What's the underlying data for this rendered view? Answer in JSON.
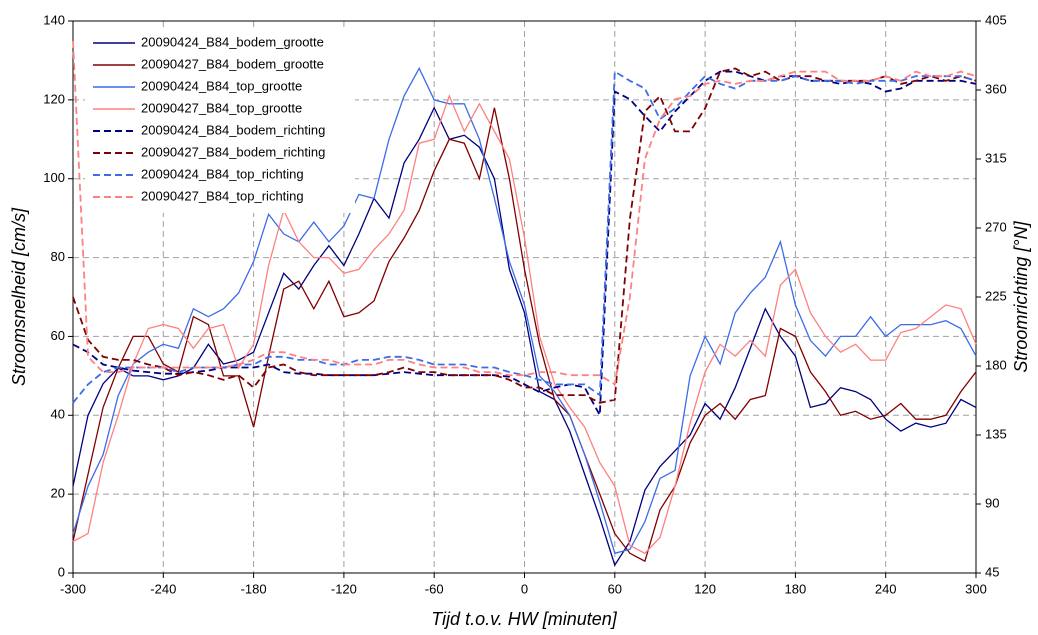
{
  "chart_data": {
    "type": "line",
    "xlabel": "Tijd t.o.v. HW [minuten]",
    "ylabel": "Stroomsnelheid [cm/s]",
    "y2label": "Stroomrichting [°N]",
    "xlim": [
      -300,
      300
    ],
    "xticks": [
      -300,
      -240,
      -180,
      -120,
      -60,
      0,
      60,
      120,
      180,
      240,
      300
    ],
    "ylim": [
      0,
      140
    ],
    "yticks": [
      0,
      20,
      40,
      60,
      80,
      100,
      120,
      140
    ],
    "y2lim": [
      45,
      405
    ],
    "y2ticks": [
      45,
      90,
      135,
      180,
      225,
      270,
      315,
      360,
      405
    ],
    "grid": true,
    "legend": "upper left",
    "x": [
      -300,
      -290,
      -280,
      -270,
      -260,
      -250,
      -240,
      -230,
      -220,
      -210,
      -200,
      -190,
      -180,
      -170,
      -160,
      -150,
      -140,
      -130,
      -120,
      -110,
      -100,
      -90,
      -80,
      -70,
      -60,
      -50,
      -40,
      -30,
      -20,
      -10,
      0,
      10,
      20,
      30,
      40,
      50,
      60,
      70,
      80,
      90,
      100,
      110,
      120,
      130,
      140,
      150,
      160,
      170,
      180,
      190,
      200,
      210,
      220,
      230,
      240,
      250,
      260,
      270,
      280,
      290,
      300
    ],
    "series": [
      {
        "name": "20090424_B84_bodem_grootte",
        "color": "#000080",
        "line_style": "solid",
        "values": [
          22,
          40,
          48,
          52,
          50,
          50,
          49,
          50,
          52,
          58,
          53,
          54,
          56,
          66,
          76,
          72,
          78,
          83,
          78,
          86,
          95,
          90,
          104,
          110,
          118,
          110,
          111,
          108,
          100,
          77,
          66,
          46,
          44,
          36,
          25,
          14,
          2,
          8,
          21,
          27,
          31,
          35,
          43,
          39,
          47,
          57,
          67,
          60,
          55,
          42,
          43,
          47,
          46,
          44,
          39,
          36,
          38,
          37,
          38,
          44,
          42
        ]
      },
      {
        "name": "20090427_B84_bodem_grootte",
        "color": "#800000",
        "line_style": "solid",
        "values": [
          8,
          25,
          42,
          52,
          60,
          60,
          53,
          51,
          65,
          63,
          50,
          50,
          37,
          55,
          72,
          74,
          67,
          74,
          65,
          66,
          69,
          79,
          85,
          92,
          102,
          110,
          109,
          100,
          118,
          100,
          77,
          58,
          44,
          40,
          30,
          20,
          10,
          5,
          3,
          16,
          22,
          33,
          40,
          43,
          39,
          44,
          45,
          62,
          60,
          51,
          46,
          40,
          41,
          39,
          40,
          43,
          39,
          39,
          40,
          46,
          51
        ]
      },
      {
        "name": "20090424_B84_top_grootte",
        "color": "#3c6ce8",
        "line_style": "solid",
        "values": [
          10,
          22,
          30,
          45,
          53,
          56,
          58,
          57,
          67,
          65,
          67,
          71,
          79,
          91,
          86,
          84,
          89,
          84,
          88,
          96,
          95,
          110,
          121,
          128,
          120,
          119,
          119,
          110,
          95,
          79,
          68,
          50,
          46,
          40,
          30,
          18,
          5,
          6,
          13,
          24,
          26,
          50,
          60,
          53,
          66,
          71,
          75,
          84,
          68,
          59,
          55,
          60,
          60,
          65,
          60,
          63,
          63,
          63,
          64,
          62,
          55
        ]
      },
      {
        "name": "20090427_B84_top_grootte",
        "color": "#ff8080",
        "line_style": "solid",
        "values": [
          8,
          10,
          28,
          40,
          53,
          62,
          63,
          62,
          57,
          62,
          63,
          52,
          58,
          78,
          92,
          84,
          80,
          80,
          76,
          77,
          82,
          86,
          92,
          109,
          110,
          121,
          112,
          119,
          112,
          105,
          85,
          60,
          48,
          42,
          37,
          28,
          22,
          7,
          5,
          9,
          22,
          38,
          51,
          58,
          55,
          59,
          55,
          73,
          77,
          66,
          60,
          56,
          58,
          54,
          54,
          61,
          62,
          65,
          68,
          67,
          58
        ]
      },
      {
        "name": "20090424_B84_bodem_richting",
        "color": "#000080",
        "line_style": "dashed",
        "axis": "y2",
        "values": [
          194,
          189,
          181,
          179,
          177,
          176,
          175,
          175,
          176,
          177,
          179,
          179,
          179,
          181,
          176,
          175,
          175,
          174,
          174,
          174,
          174,
          175,
          176,
          175,
          174,
          174,
          174,
          174,
          174,
          173,
          168,
          163,
          166,
          168,
          166,
          148,
          359,
          354,
          343,
          333,
          346,
          356,
          366,
          372,
          372,
          369,
          366,
          369,
          369,
          366,
          366,
          364,
          366,
          364,
          359,
          361,
          366,
          366,
          366,
          366,
          364
        ]
      },
      {
        "name": "20090427_B84_bodem_richting",
        "color": "#800000",
        "line_style": "dashed",
        "axis": "y2",
        "values": [
          225,
          197,
          186,
          184,
          184,
          181,
          179,
          174,
          176,
          174,
          171,
          174,
          166,
          179,
          181,
          176,
          174,
          174,
          174,
          174,
          174,
          176,
          179,
          176,
          176,
          174,
          174,
          174,
          174,
          171,
          166,
          166,
          161,
          161,
          161,
          156,
          158,
          276,
          346,
          356,
          333,
          333,
          348,
          372,
          374,
          369,
          372,
          366,
          369,
          369,
          366,
          366,
          366,
          366,
          369,
          364,
          366,
          369,
          366,
          369,
          366
        ]
      },
      {
        "name": "20090424_B84_top_richting",
        "color": "#3c6ce8",
        "line_style": "dashed",
        "axis": "y2",
        "values": [
          156,
          168,
          176,
          179,
          179,
          179,
          179,
          176,
          179,
          179,
          179,
          181,
          181,
          186,
          186,
          184,
          184,
          181,
          181,
          184,
          184,
          186,
          186,
          184,
          181,
          181,
          181,
          179,
          179,
          176,
          174,
          171,
          168,
          168,
          168,
          161,
          372,
          366,
          361,
          341,
          348,
          359,
          369,
          364,
          361,
          366,
          366,
          366,
          369,
          366,
          366,
          366,
          364,
          366,
          366,
          366,
          369,
          369,
          369,
          369,
          366
        ]
      },
      {
        "name": "20090427_B84_top_richting",
        "color": "#ff8080",
        "line_style": "dashed",
        "axis": "y2",
        "values": [
          392,
          186,
          176,
          176,
          179,
          179,
          179,
          179,
          179,
          179,
          179,
          181,
          184,
          189,
          189,
          186,
          184,
          184,
          181,
          181,
          181,
          184,
          184,
          181,
          179,
          179,
          179,
          176,
          176,
          174,
          174,
          176,
          176,
          174,
          174,
          174,
          168,
          225,
          315,
          341,
          354,
          356,
          364,
          366,
          364,
          366,
          366,
          369,
          372,
          372,
          372,
          366,
          366,
          366,
          369,
          366,
          372,
          369,
          369,
          372,
          369
        ]
      }
    ]
  }
}
